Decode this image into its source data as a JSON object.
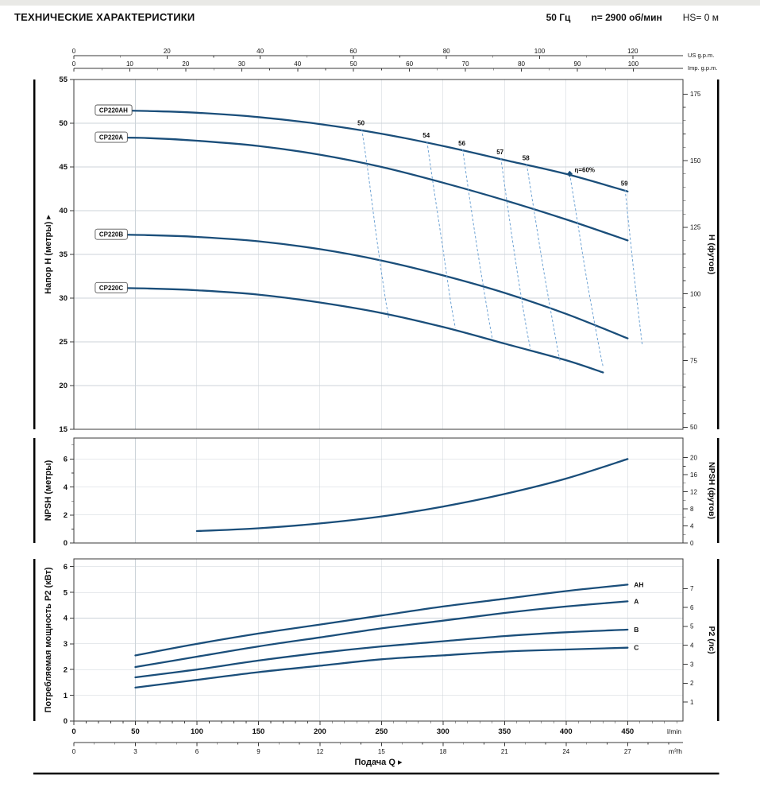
{
  "header": {
    "title": "ТЕХНИЧЕСКИЕ ХАРАКТЕРИСТИКИ",
    "frequency": "50 Гц",
    "speed": "n= 2900 об/мин",
    "suction": "HS= 0 м"
  },
  "colors": {
    "curve": "#1a4e7a",
    "efficiency": "#6fa3d4",
    "eff_text": "#0e3a5e",
    "grid": "#ccd3d9",
    "frame": "#3a3a3a",
    "text": "#111111"
  },
  "top_axis": {
    "us_gpm": {
      "label": "US g.p.m.",
      "ticks": [
        0,
        20,
        40,
        60,
        80,
        100,
        120
      ],
      "minor_step": 10,
      "lpm_per_unit": 3.785
    },
    "imp_gpm": {
      "label": "Imp. g.p.m.",
      "ticks": [
        0,
        10,
        20,
        30,
        40,
        50,
        60,
        70,
        80,
        90,
        100
      ],
      "minor_step": 5,
      "lpm_per_unit": 4.546
    }
  },
  "bottom_axis": {
    "lpm": {
      "unit": "l/min",
      "ticks": [
        0,
        50,
        100,
        150,
        200,
        250,
        300,
        350,
        400,
        450
      ],
      "minor_step": 10
    },
    "m3h": {
      "unit": "m³/h",
      "ticks": [
        0,
        3,
        6,
        9,
        12,
        15,
        18,
        21,
        24,
        27
      ],
      "minor_step": 1,
      "lpm_per_unit": 16.6667
    },
    "title": "Подача Q ▸"
  },
  "chart_data": [
    {
      "type": "line",
      "name": "hq",
      "ylabel_left": "Напор H (метры) ▸",
      "ylabel_right": "H (футов)",
      "xlim": [
        0,
        495
      ],
      "ylim": [
        15,
        55
      ],
      "yticks": [
        15,
        20,
        25,
        30,
        35,
        40,
        45,
        50,
        55
      ],
      "yticks_right": {
        "unit": "футов",
        "values": [
          50,
          75,
          100,
          125,
          150,
          175
        ],
        "minor_step": 5,
        "m_per_unit": 0.3048
      },
      "series": [
        {
          "name": "CP220AH",
          "boxed_label": true,
          "points": [
            [
              18,
              51.5
            ],
            [
              60,
              51.4
            ],
            [
              100,
              51.2
            ],
            [
              150,
              50.7
            ],
            [
              200,
              49.9
            ],
            [
              250,
              48.8
            ],
            [
              300,
              47.4
            ],
            [
              350,
              45.8
            ],
            [
              400,
              44.2
            ],
            [
              450,
              42.2
            ]
          ]
        },
        {
          "name": "CP220A",
          "boxed_label": true,
          "points": [
            [
              18,
              48.4
            ],
            [
              60,
              48.3
            ],
            [
              100,
              48.0
            ],
            [
              150,
              47.4
            ],
            [
              200,
              46.4
            ],
            [
              250,
              45.0
            ],
            [
              300,
              43.2
            ],
            [
              350,
              41.2
            ],
            [
              400,
              39.0
            ],
            [
              450,
              36.6
            ]
          ]
        },
        {
          "name": "CP220B",
          "boxed_label": true,
          "points": [
            [
              18,
              37.3
            ],
            [
              60,
              37.2
            ],
            [
              100,
              37.0
            ],
            [
              150,
              36.5
            ],
            [
              200,
              35.6
            ],
            [
              250,
              34.3
            ],
            [
              300,
              32.6
            ],
            [
              350,
              30.6
            ],
            [
              400,
              28.2
            ],
            [
              450,
              25.4
            ]
          ]
        },
        {
          "name": "CP220C",
          "boxed_label": true,
          "points": [
            [
              18,
              31.2
            ],
            [
              60,
              31.1
            ],
            [
              100,
              30.9
            ],
            [
              150,
              30.4
            ],
            [
              200,
              29.5
            ],
            [
              250,
              28.3
            ],
            [
              300,
              26.7
            ],
            [
              350,
              24.8
            ],
            [
              400,
              22.9
            ],
            [
              430,
              21.5
            ]
          ]
        }
      ],
      "efficiency_lines": [
        {
          "label": "50",
          "points": [
            [
              234,
              49.3
            ],
            [
              239,
              44.5
            ],
            [
              245,
              38.0
            ],
            [
              252,
              31.0
            ],
            [
              256,
              27.6
            ]
          ]
        },
        {
          "label": "54",
          "points": [
            [
              287,
              47.9
            ],
            [
              292,
              43.0
            ],
            [
              299,
              36.5
            ],
            [
              306,
              29.8
            ],
            [
              310,
              26.6
            ]
          ]
        },
        {
          "label": "56",
          "points": [
            [
              316,
              47.0
            ],
            [
              321,
              42.0
            ],
            [
              328,
              35.5
            ],
            [
              336,
              28.6
            ],
            [
              340,
              25.4
            ]
          ]
        },
        {
          "label": "57",
          "points": [
            [
              347,
              46.0
            ],
            [
              352,
              41.0
            ],
            [
              359,
              34.2
            ],
            [
              367,
              27.2
            ],
            [
              371,
              24.2
            ]
          ]
        },
        {
          "label": "58",
          "points": [
            [
              368,
              45.3
            ],
            [
              374,
              40.0
            ],
            [
              382,
              33.0
            ],
            [
              391,
              25.8
            ],
            [
              395,
              22.8
            ]
          ]
        },
        {
          "label": "",
          "points": [
            [
              403,
              44.2
            ],
            [
              409,
              39.0
            ],
            [
              417,
              32.0
            ],
            [
              426,
              25.0
            ],
            [
              430,
              22.2
            ]
          ]
        },
        {
          "label": "59",
          "points": [
            [
              448,
              42.4
            ],
            [
              452,
              37.0
            ],
            [
              457,
              30.5
            ],
            [
              462,
              24.5
            ]
          ]
        }
      ],
      "efficiency_marker": {
        "label": "η=60%",
        "x": 403,
        "y": 44.2
      }
    },
    {
      "type": "line",
      "name": "npsh",
      "ylabel_left": "NPSH (метры)",
      "ylabel_right": "NPSH (футов)",
      "xlim": [
        0,
        495
      ],
      "ylim": [
        0,
        7.5
      ],
      "yticks": [
        0,
        2,
        4,
        6
      ],
      "yticks_minor": [
        1,
        3,
        5,
        7
      ],
      "yticks_right": {
        "unit": "футов",
        "values": [
          0,
          4,
          8,
          12,
          16,
          20
        ],
        "minor_step": 2,
        "m_per_unit": 0.3048
      },
      "series": [
        {
          "name": "NPSH",
          "points": [
            [
              100,
              0.85
            ],
            [
              150,
              1.05
            ],
            [
              200,
              1.4
            ],
            [
              250,
              1.9
            ],
            [
              300,
              2.6
            ],
            [
              350,
              3.5
            ],
            [
              400,
              4.6
            ],
            [
              450,
              6.0
            ]
          ]
        }
      ]
    },
    {
      "type": "line",
      "name": "p2",
      "ylabel_left": "Потребляемая мощность P2 (кВт)",
      "ylabel_right": "P2 (лс)",
      "xlim": [
        0,
        495
      ],
      "ylim": [
        0,
        6.3
      ],
      "yticks": [
        0,
        1,
        2,
        3,
        4,
        5,
        6
      ],
      "yticks_right": {
        "unit": "лс",
        "values": [
          1,
          2,
          3,
          4,
          5,
          6,
          7
        ],
        "m_per_unit": 0.7355
      },
      "series": [
        {
          "name": "CP220AH",
          "end_label": "AH",
          "points": [
            [
              50,
              2.55
            ],
            [
              100,
              3.0
            ],
            [
              150,
              3.4
            ],
            [
              200,
              3.75
            ],
            [
              250,
              4.1
            ],
            [
              300,
              4.45
            ],
            [
              350,
              4.75
            ],
            [
              400,
              5.05
            ],
            [
              450,
              5.3
            ]
          ]
        },
        {
          "name": "CP220A",
          "end_label": "A",
          "points": [
            [
              50,
              2.1
            ],
            [
              100,
              2.5
            ],
            [
              150,
              2.9
            ],
            [
              200,
              3.25
            ],
            [
              250,
              3.6
            ],
            [
              300,
              3.9
            ],
            [
              350,
              4.2
            ],
            [
              400,
              4.45
            ],
            [
              450,
              4.65
            ]
          ]
        },
        {
          "name": "CP220B",
          "end_label": "B",
          "points": [
            [
              50,
              1.7
            ],
            [
              100,
              2.0
            ],
            [
              150,
              2.35
            ],
            [
              200,
              2.65
            ],
            [
              250,
              2.9
            ],
            [
              300,
              3.1
            ],
            [
              350,
              3.3
            ],
            [
              400,
              3.45
            ],
            [
              450,
              3.55
            ]
          ]
        },
        {
          "name": "CP220C",
          "end_label": "C",
          "points": [
            [
              50,
              1.3
            ],
            [
              100,
              1.6
            ],
            [
              150,
              1.9
            ],
            [
              200,
              2.15
            ],
            [
              250,
              2.4
            ],
            [
              300,
              2.55
            ],
            [
              350,
              2.7
            ],
            [
              400,
              2.78
            ],
            [
              450,
              2.85
            ]
          ]
        }
      ]
    }
  ]
}
